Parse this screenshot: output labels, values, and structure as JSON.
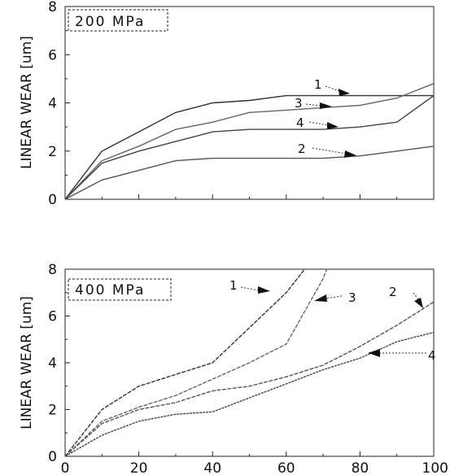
{
  "chart_data": [
    {
      "type": "line",
      "title": "",
      "annotation": "200 MPa",
      "xlabel": "",
      "ylabel": "LINEAR WEAR [um]",
      "xlim": [
        0,
        100
      ],
      "ylim": [
        0,
        8
      ],
      "yticks": [
        "0",
        "2",
        "4",
        "6",
        "8"
      ],
      "xticks": [
        "0",
        "20",
        "40",
        "60",
        "80",
        "100"
      ],
      "show_xtick_labels": false,
      "grid": false,
      "series": [
        {
          "name": "1",
          "x": [
            0,
            10,
            20,
            30,
            40,
            50,
            60,
            70,
            80,
            90,
            100
          ],
          "values": [
            0,
            2.0,
            2.8,
            3.6,
            4.0,
            4.1,
            4.3,
            4.3,
            4.3,
            4.3,
            4.3
          ]
        },
        {
          "name": "2",
          "x": [
            0,
            10,
            20,
            30,
            40,
            50,
            60,
            70,
            80,
            90,
            100
          ],
          "values": [
            0,
            0.8,
            1.2,
            1.6,
            1.7,
            1.7,
            1.7,
            1.7,
            1.8,
            2.0,
            2.2
          ]
        },
        {
          "name": "3",
          "x": [
            0,
            10,
            20,
            30,
            40,
            50,
            60,
            70,
            80,
            90,
            100
          ],
          "values": [
            0,
            1.6,
            2.2,
            2.9,
            3.2,
            3.6,
            3.7,
            3.8,
            3.9,
            4.2,
            4.8
          ]
        },
        {
          "name": "4",
          "x": [
            0,
            10,
            20,
            30,
            40,
            50,
            60,
            70,
            80,
            90,
            100
          ],
          "values": [
            0,
            1.5,
            2.0,
            2.4,
            2.8,
            2.9,
            2.9,
            2.9,
            3.0,
            3.2,
            4.3
          ]
        }
      ]
    },
    {
      "type": "line",
      "title": "",
      "annotation": "400 MPa",
      "xlabel": "",
      "ylabel": "LINEAR WEAR [um]",
      "xlim": [
        0,
        100
      ],
      "ylim": [
        0,
        8
      ],
      "yticks": [
        "0",
        "2",
        "4",
        "6",
        "8"
      ],
      "xticks": [
        "0",
        "20",
        "40",
        "60",
        "80",
        "100"
      ],
      "show_xtick_labels": true,
      "grid": false,
      "series": [
        {
          "name": "1",
          "x": [
            0,
            10,
            20,
            30,
            40,
            50,
            60,
            65
          ],
          "values": [
            0,
            2.0,
            3.0,
            3.5,
            4.0,
            5.5,
            7.0,
            8.0
          ]
        },
        {
          "name": "2",
          "x": [
            0,
            10,
            20,
            30,
            40,
            50,
            60,
            70,
            80,
            90,
            100
          ],
          "values": [
            0,
            1.4,
            2.0,
            2.3,
            2.8,
            3.0,
            3.4,
            3.9,
            4.7,
            5.6,
            6.6
          ]
        },
        {
          "name": "3",
          "x": [
            0,
            10,
            20,
            30,
            40,
            50,
            60,
            70,
            71
          ],
          "values": [
            0,
            1.5,
            2.1,
            2.6,
            3.3,
            4.0,
            4.8,
            7.6,
            8.0
          ]
        },
        {
          "name": "4",
          "x": [
            0,
            10,
            20,
            30,
            40,
            50,
            60,
            70,
            80,
            90,
            100
          ],
          "values": [
            0,
            0.9,
            1.5,
            1.8,
            1.9,
            2.5,
            3.1,
            3.7,
            4.2,
            4.9,
            5.3
          ]
        }
      ]
    }
  ],
  "series_colors": {
    "1": "#333333",
    "2": "#555555",
    "3": "#666666",
    "4": "#444444"
  }
}
